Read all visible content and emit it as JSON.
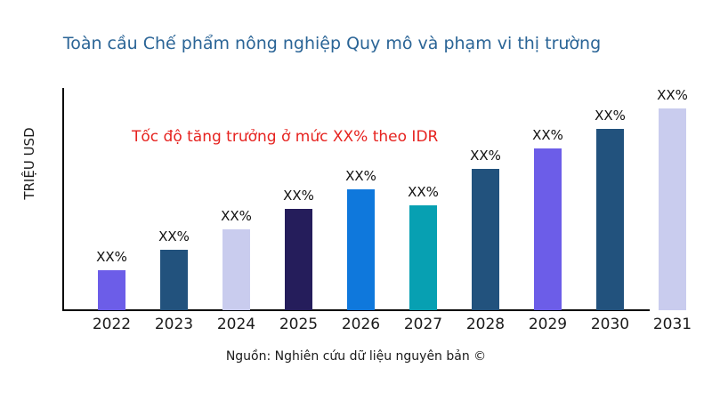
{
  "title": "Toàn cầu Chế phẩm nông nghiệp Quy mô và phạm vi thị trường",
  "annotation": "Tốc độ tăng trưởng ở mức XX% theo IDR",
  "ylabel": "TRIỆU USD",
  "source": "Nguồn: Nghiên cứu dữ liệu nguyên bản ©",
  "colors": {
    "title": "#2A6496",
    "annotation": "#E62320",
    "axis": "#000000",
    "violet": "#6C5DE8",
    "navy": "#22527D",
    "lavender": "#C9CCEE",
    "indigo": "#251D5B",
    "blue": "#0F78DC",
    "teal": "#07A0B2"
  },
  "chart_data": {
    "type": "bar",
    "title": "Toàn cầu Chế phẩm nông nghiệp Quy mô và phạm vi thị trường",
    "xlabel": "",
    "ylabel": "TRIỆU USD",
    "categories": [
      "2022",
      "2023",
      "2024",
      "2025",
      "2026",
      "2027",
      "2028",
      "2029",
      "2030",
      "2031"
    ],
    "values": [
      20,
      30,
      40,
      50,
      60,
      52,
      70,
      80,
      90,
      100
    ],
    "value_labels": [
      "XX%",
      "XX%",
      "XX%",
      "XX%",
      "XX%",
      "XX%",
      "XX%",
      "XX%",
      "XX%",
      "XX%"
    ],
    "bar_colors": [
      "#6C5DE8",
      "#22527D",
      "#C9CCEE",
      "#251D5B",
      "#0F78DC",
      "#07A0B2",
      "#22527D",
      "#6C5DE8",
      "#22527D",
      "#C9CCEE"
    ],
    "ylim": [
      0,
      100
    ],
    "grid": false,
    "legend": "none",
    "axis_tick_labels_y": "none",
    "annotation": "Tốc độ tăng trưởng ở mức XX% theo IDR",
    "source": "Nguồn: Nghiên cứu dữ liệu nguyên bản ©"
  }
}
